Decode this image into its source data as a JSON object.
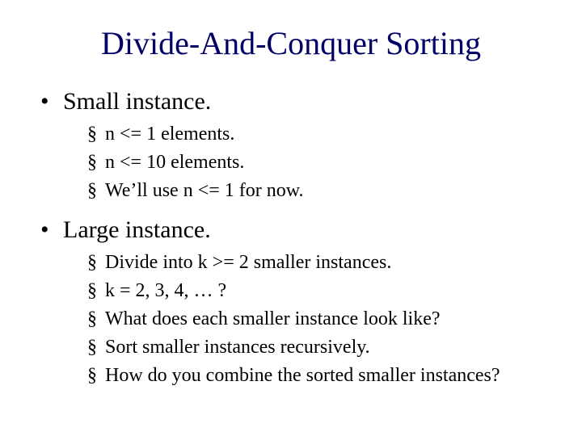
{
  "title": {
    "text": "Divide-And-Conquer Sorting",
    "color": "#000066",
    "fontsize": 40
  },
  "text_color": "#000000",
  "background_color": "#ffffff",
  "font_family": "Times New Roman",
  "bullets": [
    {
      "label": "Small instance.",
      "sub": [
        "n <= 1 elements.",
        "n <= 10 elements.",
        "We’ll use n <= 1 for now."
      ]
    },
    {
      "label": "Large instance.",
      "sub": [
        "Divide into k >= 2 smaller instances.",
        "k = 2, 3, 4, … ?",
        "What does each smaller instance look like?",
        "Sort smaller instances recursively.",
        "How do you combine the sorted smaller instances?"
      ]
    }
  ],
  "level1_fontsize": 30,
  "level2_fontsize": 24,
  "level1_marker": "•",
  "level2_marker": "§"
}
